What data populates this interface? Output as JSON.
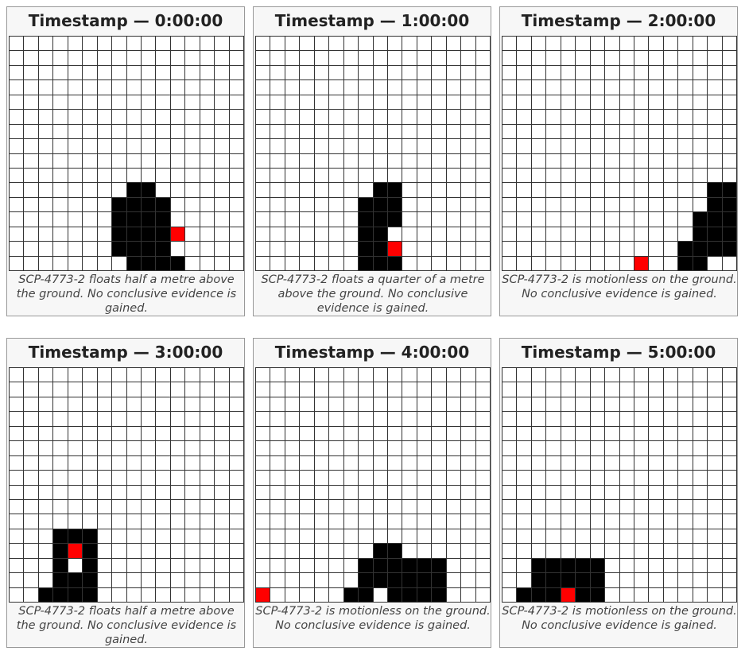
{
  "colors": {
    "filled": "#000000",
    "marker": "#ff0000",
    "empty": "#ffffff"
  },
  "panels": [
    {
      "title": "Timestamp — 0:00:00",
      "caption": "SCP-4773-2 floats half a metre above the ground. No conclusive evidence is gained.",
      "rows": [
        "................",
        "................",
        "................",
        "................",
        "................",
        "................",
        "................",
        "................",
        "................",
        "................",
        "........##......",
        ".......####.....",
        ".......####.....",
        ".......####R....",
        ".......####.....",
        "........####...."
      ]
    },
    {
      "title": "Timestamp — 1:00:00",
      "caption": "SCP-4773-2 floats a quarter of a metre above the ground. No conclusive evidence is gained.",
      "rows": [
        "................",
        "................",
        "................",
        "................",
        "................",
        "................",
        "................",
        "................",
        "................",
        "................",
        "........##......",
        ".......###......",
        ".......###......",
        ".......##.......",
        ".......##R......",
        ".......###......"
      ]
    },
    {
      "title": "Timestamp — 2:00:00",
      "caption": "SCP-4773-2 is motionless on the ground. No conclusive evidence is gained.",
      "rows": [
        "................",
        "................",
        "................",
        "................",
        "................",
        "................",
        "................",
        "................",
        "................",
        "................",
        "..............##",
        "..............##",
        ".............###",
        ".............###",
        "............####",
        ".........R..##.."
      ]
    },
    {
      "title": "Timestamp — 3:00:00",
      "caption": "SCP-4773-2 floats half a metre above the ground. No conclusive evidence is gained.",
      "rows": [
        "................",
        "................",
        "................",
        "................",
        "................",
        "................",
        "................",
        "................",
        "................",
        "................",
        "................",
        "...###..........",
        "...#R#..........",
        "...#.#..........",
        "...###..........",
        "..####.........."
      ]
    },
    {
      "title": "Timestamp — 4:00:00",
      "caption": "SCP-4773-2 is motionless on the ground. No conclusive evidence is gained.",
      "rows": [
        "................",
        "................",
        "................",
        "................",
        "................",
        "................",
        "................",
        "................",
        "................",
        "................",
        "................",
        "................",
        "........##......",
        ".......######...",
        ".......######...",
        "R.....##.####..."
      ]
    },
    {
      "title": "Timestamp — 5:00:00",
      "caption": "SCP-4773-2 is motionless on the ground. No conclusive evidence is gained.",
      "rows": [
        "................",
        "................",
        "................",
        "................",
        "................",
        "................",
        "................",
        "................",
        "................",
        "................",
        "................",
        "................",
        "................",
        "..#####.........",
        "..#####.........",
        ".###R##........."
      ]
    }
  ]
}
